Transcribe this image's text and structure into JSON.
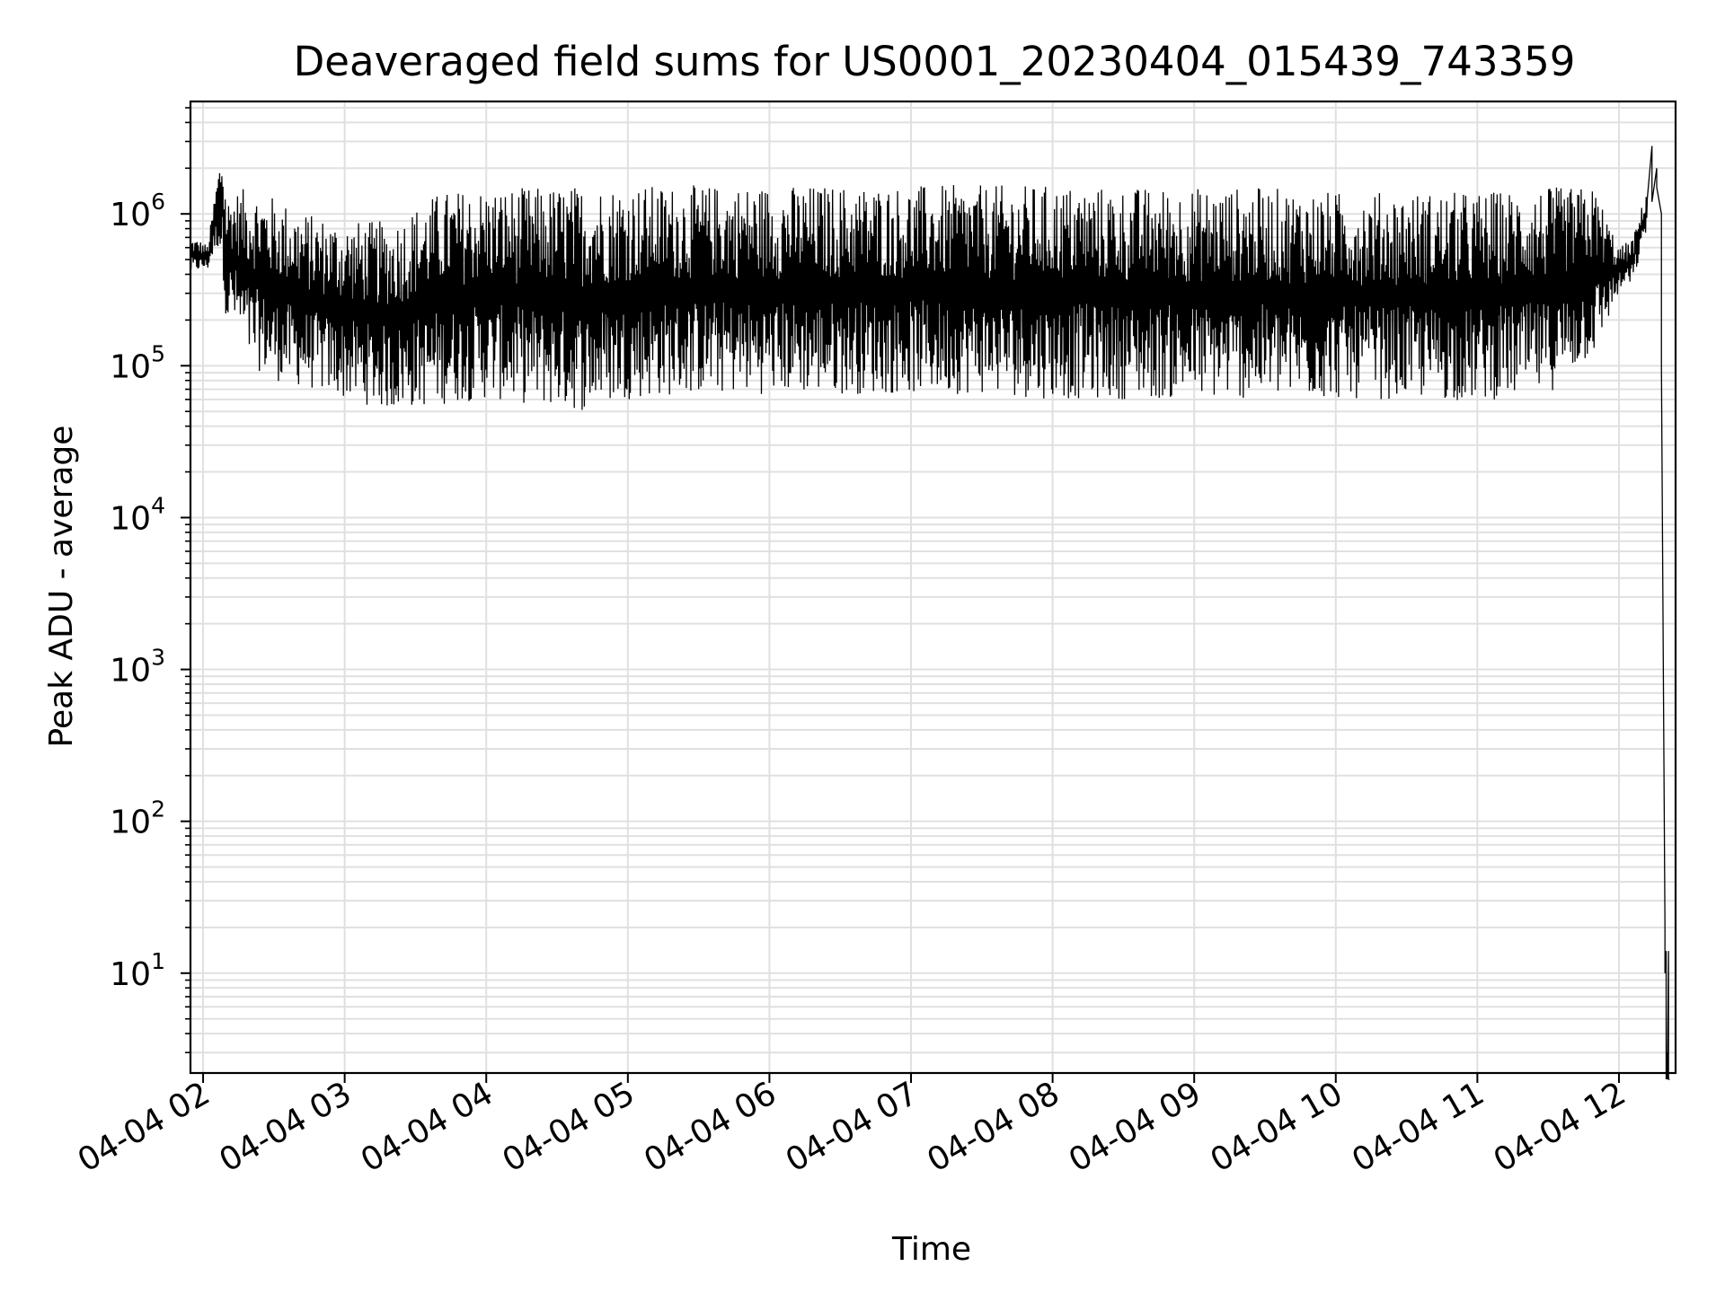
{
  "chart_data": {
    "type": "line",
    "title": "Deaveraged field sums for US0001_20230404_015439_743359",
    "xlabel": "Time",
    "ylabel": "Peak ADU - average",
    "yscale": "log",
    "ylim": [
      2.2,
      5500000
    ],
    "xlim": [
      "2023-04-04 01:54:39",
      "2023-04-04 12:24:00"
    ],
    "grid": true,
    "line_color": "#000000",
    "grid_color": "#e0e0e0",
    "x_ticks": [
      "04-04 02",
      "04-04 03",
      "04-04 04",
      "04-04 05",
      "04-04 06",
      "04-04 07",
      "04-04 08",
      "04-04 09",
      "04-04 10",
      "04-04 11",
      "04-04 12"
    ],
    "y_ticks": [
      {
        "value": 10,
        "base": "10",
        "exp": "1"
      },
      {
        "value": 100,
        "base": "10",
        "exp": "2"
      },
      {
        "value": 1000,
        "base": "10",
        "exp": "3"
      },
      {
        "value": 10000,
        "base": "10",
        "exp": "4"
      },
      {
        "value": 100000,
        "base": "10",
        "exp": "5"
      },
      {
        "value": 1000000,
        "base": "10",
        "exp": "6"
      }
    ],
    "series": [
      {
        "x": [
          "2023-04-04 01:54:39",
          "2023-04-04 01:58:00",
          "2023-04-04 02:02:00",
          "2023-04-04 02:06:00",
          "2023-04-04 02:08:00",
          "2023-04-04 02:10:00",
          "2023-04-04 02:12:00",
          "2023-04-04 02:20:00",
          "2023-04-04 02:30:00",
          "2023-04-04 02:45:00",
          "2023-04-04 03:00:00",
          "2023-04-04 03:20:00",
          "2023-04-04 03:40:00",
          "2023-04-04 04:00:00",
          "2023-04-04 04:20:00",
          "2023-04-04 04:40:00",
          "2023-04-04 05:00:00",
          "2023-04-04 05:30:00",
          "2023-04-04 06:00:00",
          "2023-04-04 06:30:00",
          "2023-04-04 07:00:00",
          "2023-04-04 07:30:00",
          "2023-04-04 08:00:00",
          "2023-04-04 08:30:00",
          "2023-04-04 09:00:00",
          "2023-04-04 09:30:00",
          "2023-04-04 10:00:00",
          "2023-04-04 10:30:00",
          "2023-04-04 11:00:00",
          "2023-04-04 11:30:00",
          "2023-04-04 11:50:00",
          "2023-04-04 12:00:00",
          "2023-04-04 12:06:00",
          "2023-04-04 12:12:00",
          "2023-04-04 12:14:00",
          "2023-04-04 12:16:00",
          "2023-04-04 12:18:00",
          "2023-04-04 12:19:30",
          "2023-04-04 12:20:00",
          "2023-04-04 12:20:30",
          "2023-04-04 12:21:00",
          "2023-04-04 12:21:30"
        ],
        "min": [
          400000,
          420000,
          430000,
          600000,
          500000,
          180000,
          200000,
          100000,
          80000,
          70000,
          60000,
          50000,
          55000,
          60000,
          55000,
          50000,
          60000,
          65000,
          65000,
          65000,
          65000,
          65000,
          60000,
          60000,
          60000,
          60000,
          60000,
          60000,
          58000,
          65000,
          120000,
          300000,
          350000,
          800000,
          1200000,
          1500000,
          100000,
          10,
          2,
          2,
          2,
          2
        ],
        "max": [
          700000,
          680000,
          620000,
          1800000,
          2800000,
          1300000,
          1400000,
          1500000,
          1300000,
          1000000,
          900000,
          900000,
          1400000,
          1500000,
          1500000,
          1550000,
          1550000,
          1550000,
          1550000,
          1550000,
          1550000,
          1550000,
          1550000,
          1500000,
          1500000,
          1500000,
          1400000,
          1400000,
          1400000,
          1500000,
          1500000,
          600000,
          700000,
          1500000,
          2800000,
          2000000,
          1000000,
          20,
          14,
          3,
          14,
          2
        ]
      }
    ]
  }
}
